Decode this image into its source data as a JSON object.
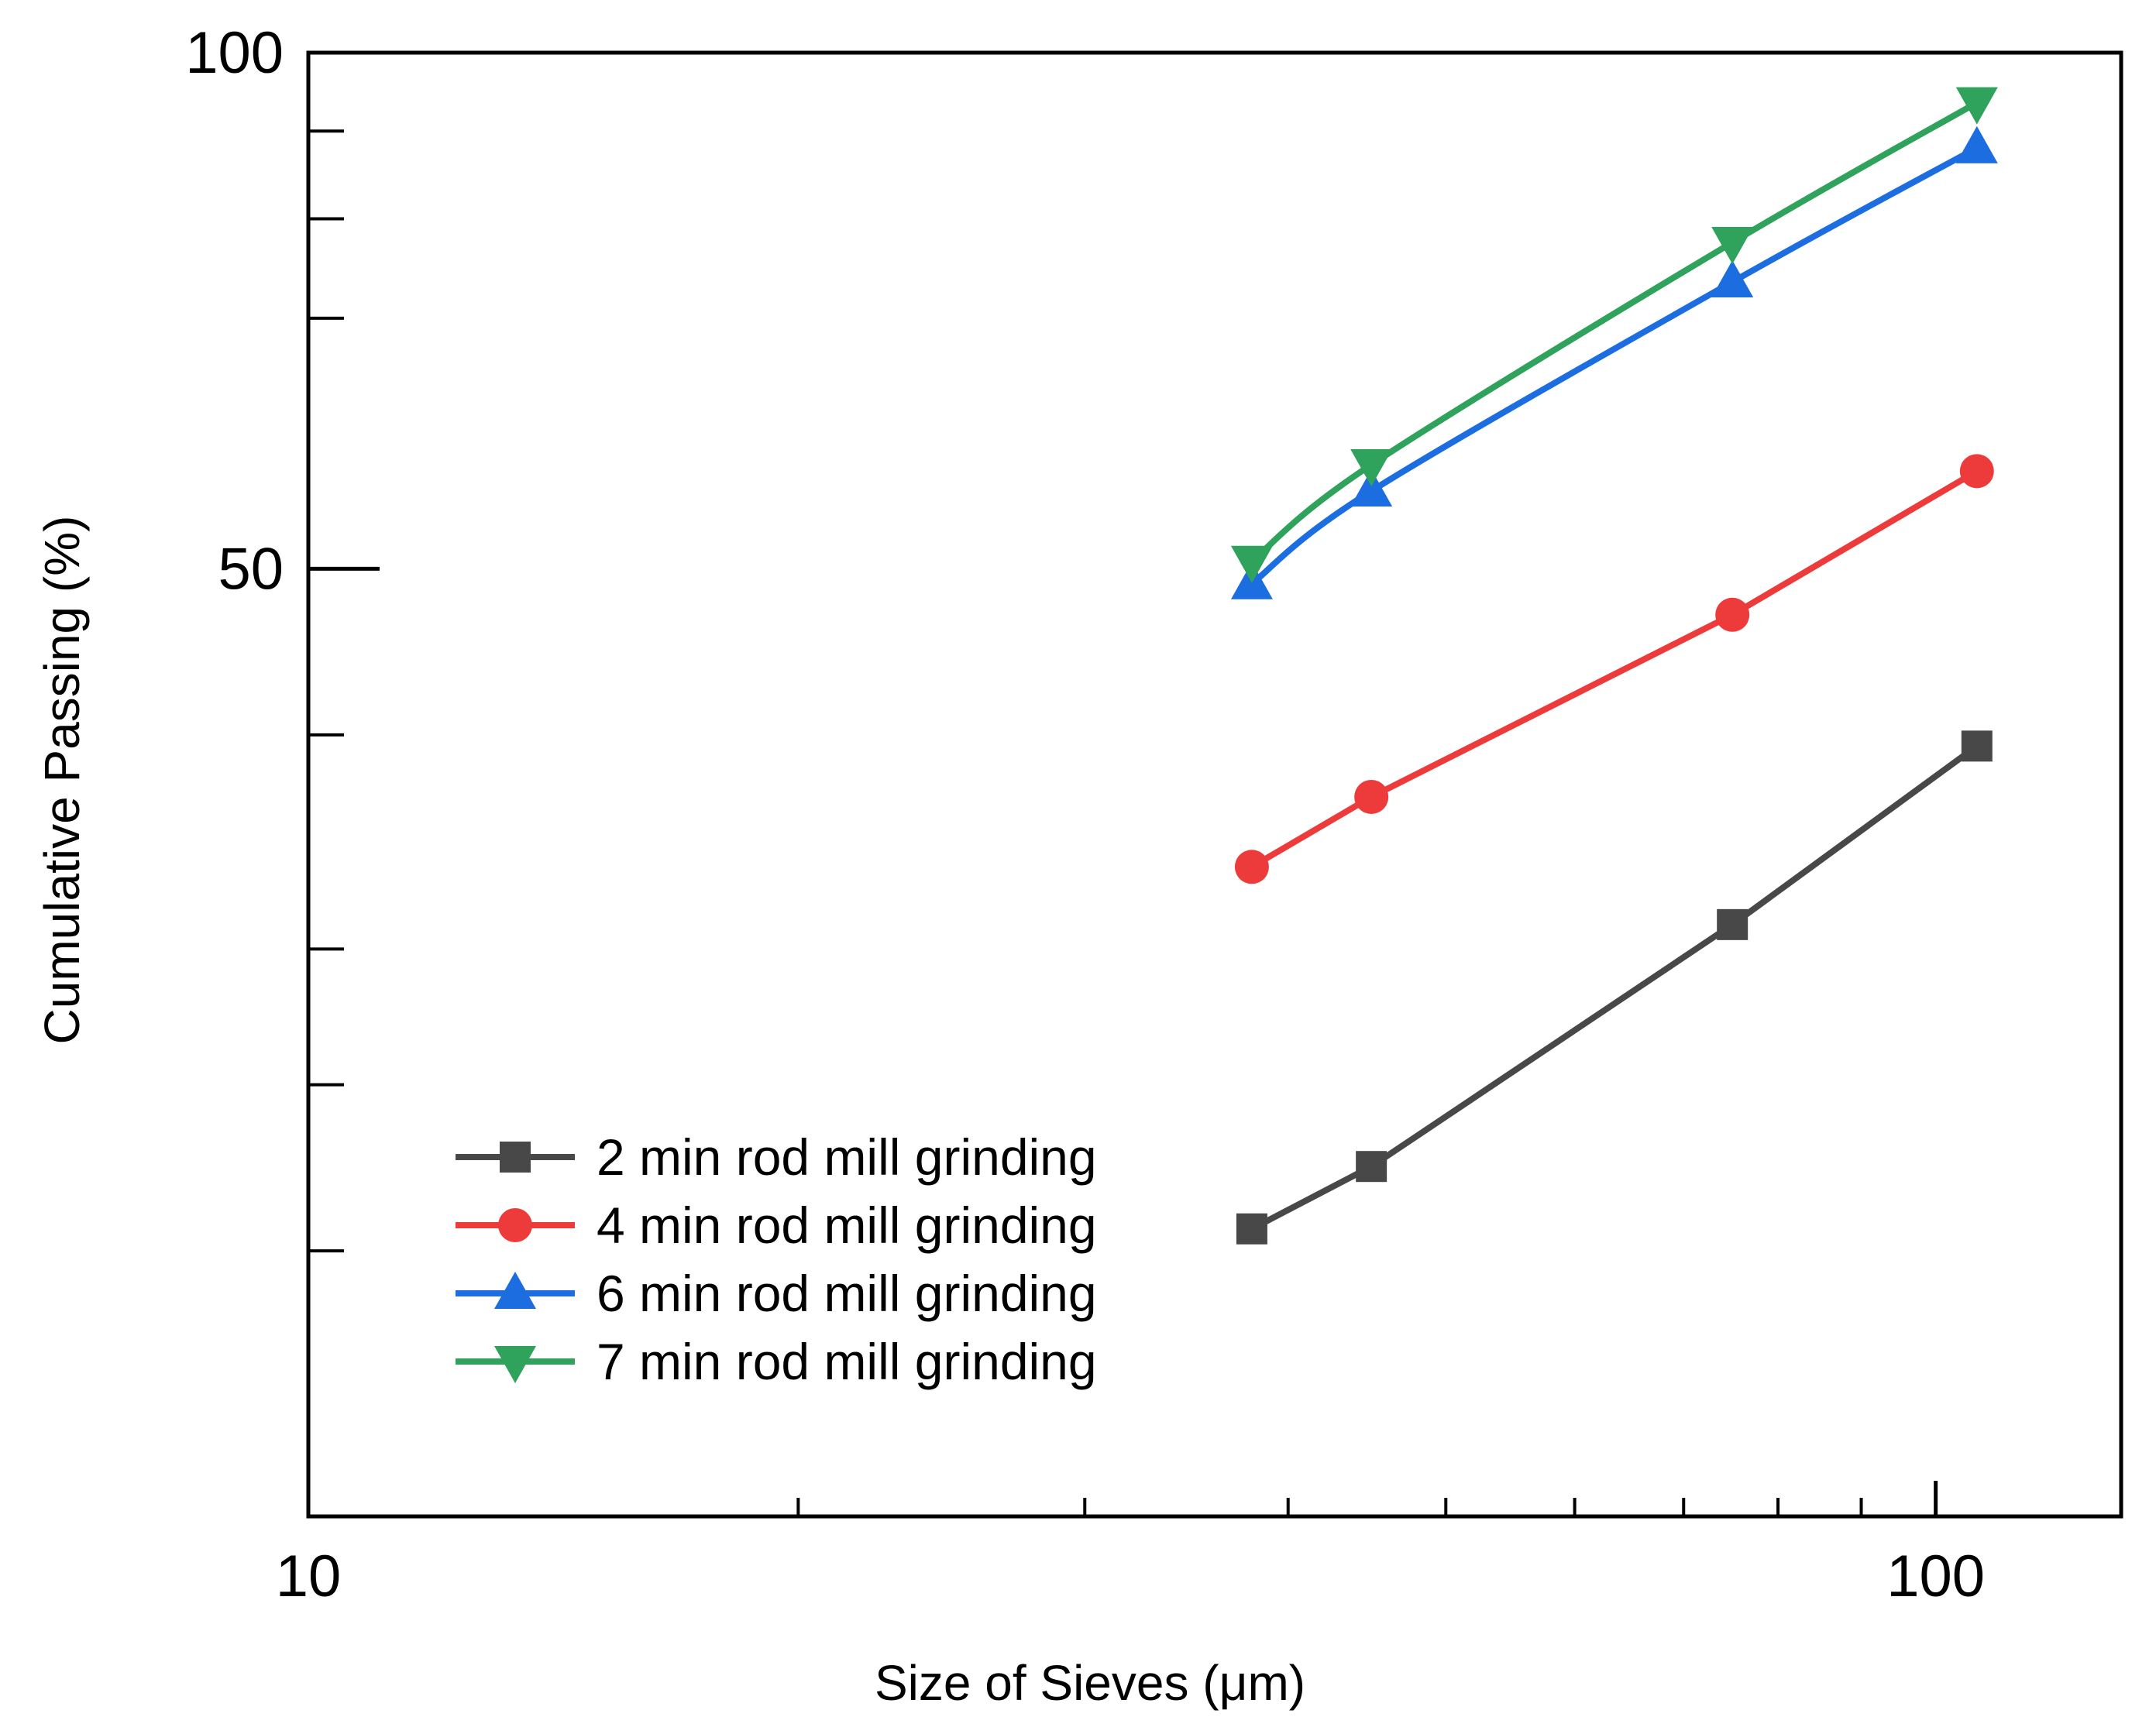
{
  "chart_data": {
    "type": "line",
    "title": "",
    "xlabel": "Size of Sieves (μm)",
    "ylabel": "Cumulative Passing (%)",
    "xscale": "log",
    "yscale": "log",
    "xlim": [
      10,
      130
    ],
    "ylim": [
      14,
      100
    ],
    "x_tick_labels": [
      "10",
      "100"
    ],
    "y_tick_labels": [
      "100",
      "50"
    ],
    "x_minor_ticks": [
      20,
      30,
      40,
      50,
      60,
      70,
      80,
      90
    ],
    "y_minor_ticks": [
      20,
      25,
      30,
      40,
      70,
      80,
      90
    ],
    "grid": false,
    "legend_position": "bottom-left",
    "series": [
      {
        "name": "2 min rod mill grinding",
        "color": "#484848",
        "marker": "square",
        "x": [
          38,
          45,
          75,
          106
        ],
        "y": [
          20.6,
          22.4,
          31.0,
          39.4
        ]
      },
      {
        "name": "4 min rod mill grinding",
        "color": "#ed3b3b",
        "marker": "circle",
        "x": [
          38,
          45,
          75,
          106
        ],
        "y": [
          33.5,
          36.8,
          47.0,
          57.0
        ]
      },
      {
        "name": "6 min rod mill grinding",
        "color": "#1c6ee0",
        "marker": "triangle-up",
        "x": [
          38,
          45,
          75,
          106
        ],
        "y": [
          49.0,
          55.5,
          73.5,
          88.0
        ]
      },
      {
        "name": "7 min rod mill grinding",
        "color": "#2fa25c",
        "marker": "triangle-down",
        "x": [
          38,
          45,
          75,
          106
        ],
        "y": [
          50.5,
          57.5,
          77.5,
          93.5
        ]
      }
    ]
  }
}
